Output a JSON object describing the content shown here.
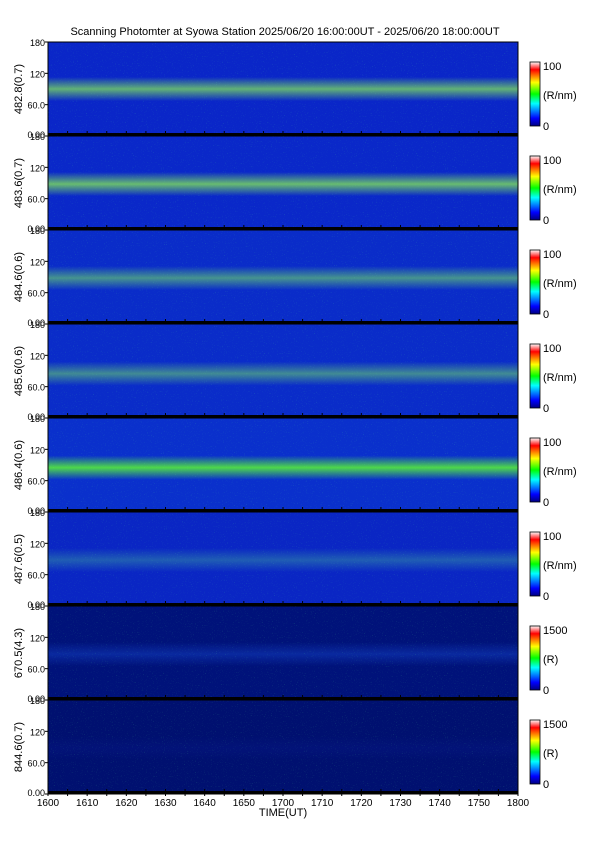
{
  "title": "Scanning Photomter at Syowa Station 2025/06/20 16:00:00UT - 2025/06/20 18:00:00UT",
  "chart_data": {
    "type": "heatmap",
    "title": "Scanning Photomter at Syowa Station 2025/06/20 16:00:00UT - 2025/06/20 18:00:00UT",
    "xlabel": "TIME(UT)",
    "xticks": [
      "1600",
      "1610",
      "1620",
      "1630",
      "1640",
      "1650",
      "1700",
      "1710",
      "1720",
      "1730",
      "1740",
      "1750",
      "1800"
    ],
    "xlim": [
      "1600",
      "1800"
    ],
    "ylim": [
      0,
      180
    ],
    "yticks": [
      "0.00",
      "60.0",
      "120",
      "180"
    ],
    "colormap": [
      "#00007f",
      "#0000ff",
      "#00ffff",
      "#00ff00",
      "#ffff00",
      "#ff0000",
      "#ffffff"
    ],
    "panels": [
      {
        "ylabel": "482.8(0.7)",
        "colorbar_min": "0",
        "colorbar_max": "100",
        "unit": "(R/nm)",
        "background": "#0a26c8",
        "band_center": 90,
        "band_color": "#7fe05a",
        "band_strength": 0.75
      },
      {
        "ylabel": "483.6(0.7)",
        "colorbar_min": "0",
        "colorbar_max": "100",
        "unit": "(R/nm)",
        "background": "#0a28c9",
        "band_center": 88,
        "band_color": "#7fe05a",
        "band_strength": 0.8
      },
      {
        "ylabel": "484.6(0.6)",
        "colorbar_min": "0",
        "colorbar_max": "100",
        "unit": "(R/nm)",
        "background": "#0a2cc9",
        "band_center": 88,
        "band_color": "#6ed868",
        "band_strength": 0.6
      },
      {
        "ylabel": "485.6(0.6)",
        "colorbar_min": "0",
        "colorbar_max": "100",
        "unit": "(R/nm)",
        "background": "#0a2cc9",
        "band_center": 85,
        "band_color": "#6ed868",
        "band_strength": 0.55
      },
      {
        "ylabel": "486.4(0.6)",
        "colorbar_min": "0",
        "colorbar_max": "100",
        "unit": "(R/nm)",
        "background": "#0a30cc",
        "band_center": 85,
        "band_color": "#4ed84a",
        "band_strength": 1.0
      },
      {
        "ylabel": "487.6(0.5)",
        "colorbar_min": "0",
        "colorbar_max": "100",
        "unit": "(R/nm)",
        "background": "#0a26c4",
        "band_center": 88,
        "band_color": "#3aa0a0",
        "band_strength": 0.45
      },
      {
        "ylabel": "670.5(4.3)",
        "colorbar_min": "0",
        "colorbar_max": "1500",
        "unit": "(R)",
        "background": "#00127a",
        "band_center": 88,
        "band_color": "#1038b8",
        "band_strength": 0.6
      },
      {
        "ylabel": "844.6(0.7)",
        "colorbar_min": "0",
        "colorbar_max": "1500",
        "unit": "(R)",
        "background": "#001070",
        "band_center": 88,
        "band_color": "#0a1a90",
        "band_strength": 0.25
      }
    ]
  }
}
